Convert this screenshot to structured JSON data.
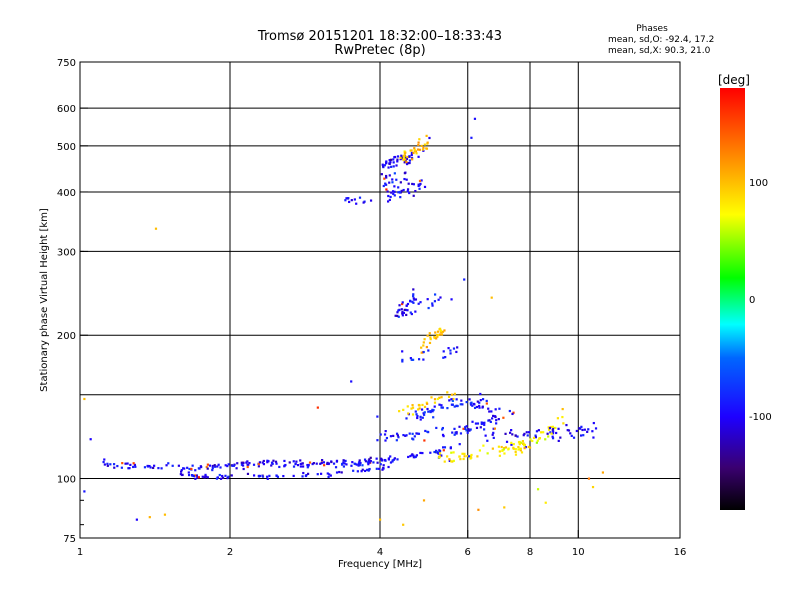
{
  "chart_data": {
    "type": "scatter",
    "title": "Tromsø 20151201 18:32:00–18:33:43",
    "subtitle": "RwPretec (8p)",
    "phases": {
      "heading": "Phases",
      "line_o": "mean, sd,O: -92.4, 17.2",
      "line_x": "mean, sd,X:  90.3, 21.0"
    },
    "xlabel": "Frequency [MHz]",
    "ylabel": "Stationary phase Virtual Height [km]",
    "xscale": "log",
    "yscale": "log",
    "xlim": [
      1,
      16
    ],
    "ylim": [
      75,
      750
    ],
    "xticks": [
      1,
      2,
      4,
      6,
      8,
      10,
      16
    ],
    "xtick_labels": [
      "1",
      "2",
      "4",
      "6",
      "8",
      "10",
      "16"
    ],
    "yticks": [
      75,
      100,
      200,
      300,
      400,
      500,
      600,
      750
    ],
    "ytick_labels": [
      "75",
      "100",
      "200",
      "300",
      "400",
      "500",
      "600",
      "750"
    ],
    "x_gridlines": [
      2,
      4,
      6,
      8,
      10
    ],
    "y_gridlines": [
      100,
      150,
      200,
      300,
      400,
      500,
      600
    ],
    "grid": true,
    "colorbar": {
      "label": "[deg]",
      "range": [
        -180,
        180
      ],
      "ticks": [
        100,
        0,
        -100
      ],
      "tick_labels": [
        "100",
        "0",
        "-100"
      ]
    },
    "traces": [
      {
        "x": [
          1.1,
          1.2,
          1.35,
          1.45,
          1.6,
          1.72,
          1.85,
          2.0,
          2.2,
          2.5,
          2.8,
          3.1,
          3.4,
          3.7,
          4.0,
          4.3,
          4.6,
          4.9,
          5.3,
          5.7
        ],
        "y": [
          109,
          106,
          106,
          106,
          106,
          105,
          106,
          106,
          107,
          107,
          107,
          107,
          107,
          108,
          109,
          110,
          111,
          112,
          114,
          117
        ],
        "phase": -95,
        "jitter": 0.02,
        "count": 170
      },
      {
        "x": [
          1.55,
          1.7,
          1.85,
          2.0,
          2.3,
          2.6,
          3.0,
          3.4,
          3.8,
          4.2
        ],
        "y": [
          104,
          101,
          101,
          101,
          101,
          101,
          102,
          103,
          104,
          106
        ],
        "phase": -100,
        "jitter": 0.015,
        "count": 80
      },
      {
        "x": [
          1.8,
          2.0,
          2.3,
          2.7,
          3.1,
          3.5,
          4.0
        ],
        "y": [
          106,
          107,
          108,
          108,
          108,
          109,
          110
        ],
        "phase": -110,
        "jitter": 0.015,
        "count": 50
      },
      {
        "x": [
          4.0,
          4.5,
          5.0,
          5.5,
          6.0,
          6.5,
          7.0
        ],
        "y": [
          122,
          123,
          124,
          125,
          127,
          131,
          135
        ],
        "phase": -92,
        "jitter": 0.03,
        "count": 70
      },
      {
        "x": [
          4.5,
          5.0,
          5.5,
          6.0,
          6.5
        ],
        "y": [
          134,
          138,
          142,
          145,
          148
        ],
        "phase": -85,
        "jitter": 0.035,
        "count": 45
      },
      {
        "x": [
          5.2,
          5.6,
          6.0,
          6.5,
          7.0,
          7.5,
          8.0
        ],
        "y": [
          110,
          111,
          112,
          114,
          116,
          117,
          118
        ],
        "phase": 85,
        "jitter": 0.03,
        "count": 60
      },
      {
        "x": [
          4.4,
          4.8,
          5.2,
          5.6
        ],
        "y": [
          138,
          141,
          146,
          150
        ],
        "phase": 95,
        "jitter": 0.035,
        "count": 30
      },
      {
        "x": [
          6.5,
          7.2,
          8.0,
          8.8,
          9.5,
          10.3,
          11.2
        ],
        "y": [
          125,
          123,
          122,
          124,
          125,
          126,
          127
        ],
        "phase": -100,
        "jitter": 0.04,
        "count": 55
      },
      {
        "x": [
          7.0,
          7.8,
          8.6,
          9.3
        ],
        "y": [
          114,
          118,
          125,
          133
        ],
        "phase": 75,
        "jitter": 0.04,
        "count": 35
      },
      {
        "x": [
          6.0,
          6.5,
          7.0,
          7.5
        ],
        "y": [
          145,
          142,
          138,
          135
        ],
        "phase": -95,
        "jitter": 0.04,
        "count": 25
      },
      {
        "x": [
          4.3,
          4.5,
          4.7
        ],
        "y": [
          220,
          230,
          240
        ],
        "phase": -100,
        "jitter": 0.05,
        "count": 30
      },
      {
        "x": [
          4.8,
          5.0,
          5.2,
          5.4
        ],
        "y": [
          190,
          195,
          200,
          208
        ],
        "phase": 95,
        "jitter": 0.04,
        "count": 30
      },
      {
        "x": [
          4.4,
          4.8,
          5.3,
          5.7
        ],
        "y": [
          178,
          180,
          182,
          186
        ],
        "phase": -95,
        "jitter": 0.04,
        "count": 20
      },
      {
        "x": [
          4.6,
          4.9,
          5.2,
          5.5
        ],
        "y": [
          225,
          232,
          238,
          245
        ],
        "phase": -90,
        "jitter": 0.05,
        "count": 15
      },
      {
        "x": [
          4.0,
          4.2,
          4.4,
          4.6
        ],
        "y": [
          455,
          462,
          468,
          472
        ],
        "phase": -105,
        "jitter": 0.04,
        "count": 45
      },
      {
        "x": [
          4.4,
          4.6,
          4.8,
          5.0
        ],
        "y": [
          470,
          480,
          495,
          510
        ],
        "phase": 100,
        "jitter": 0.05,
        "count": 40
      },
      {
        "x": [
          4.1,
          4.4,
          4.7,
          5.0
        ],
        "y": [
          392,
          400,
          410,
          420
        ],
        "phase": -100,
        "jitter": 0.04,
        "count": 35
      },
      {
        "x": [
          3.4,
          3.6,
          3.8
        ],
        "y": [
          384,
          384,
          384
        ],
        "phase": -100,
        "jitter": 0.02,
        "count": 12
      },
      {
        "x": [
          4.0,
          4.3,
          4.6
        ],
        "y": [
          420,
          425,
          432
        ],
        "phase": -95,
        "jitter": 0.04,
        "count": 18
      }
    ],
    "scatter_points": [
      {
        "x": 1.02,
        "y": 94,
        "phase": -90
      },
      {
        "x": 1.42,
        "y": 335,
        "phase": 100
      },
      {
        "x": 1.38,
        "y": 83,
        "phase": 105
      },
      {
        "x": 1.48,
        "y": 84,
        "phase": 100
      },
      {
        "x": 1.3,
        "y": 82,
        "phase": -100
      },
      {
        "x": 3.0,
        "y": 141,
        "phase": 160
      },
      {
        "x": 4.0,
        "y": 82,
        "phase": 100
      },
      {
        "x": 4.45,
        "y": 80,
        "phase": 95
      },
      {
        "x": 4.9,
        "y": 90,
        "phase": 110
      },
      {
        "x": 6.3,
        "y": 86,
        "phase": 120
      },
      {
        "x": 7.1,
        "y": 87,
        "phase": 95
      },
      {
        "x": 8.3,
        "y": 95,
        "phase": 60
      },
      {
        "x": 8.6,
        "y": 89,
        "phase": 80
      },
      {
        "x": 10.5,
        "y": 100,
        "phase": 130
      },
      {
        "x": 10.7,
        "y": 96,
        "phase": 90
      },
      {
        "x": 11.2,
        "y": 103,
        "phase": 110
      },
      {
        "x": 6.2,
        "y": 570,
        "phase": -95
      },
      {
        "x": 6.1,
        "y": 520,
        "phase": -90
      },
      {
        "x": 5.9,
        "y": 262,
        "phase": -85
      },
      {
        "x": 6.7,
        "y": 240,
        "phase": 100
      },
      {
        "x": 1.02,
        "y": 147,
        "phase": 100
      },
      {
        "x": 1.05,
        "y": 121,
        "phase": -100
      },
      {
        "x": 3.5,
        "y": 160,
        "phase": -95
      },
      {
        "x": 3.95,
        "y": 135,
        "phase": -90
      },
      {
        "x": 9.3,
        "y": 140,
        "phase": 100
      }
    ]
  }
}
